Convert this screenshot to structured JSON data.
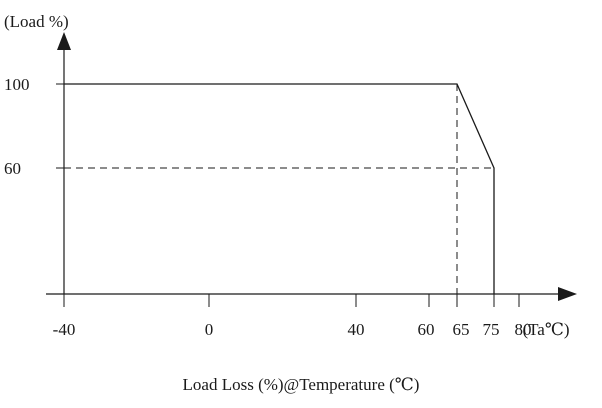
{
  "chart_data": {
    "type": "line",
    "y_axis_label": "(Load %)",
    "x_axis_unit_label": "(Ta℃)",
    "caption": "Load Loss (%)@Temperature (℃)",
    "x_ticks": [
      "-40",
      "0",
      "40",
      "60",
      "65",
      "75",
      "80"
    ],
    "y_ticks": [
      "100",
      "60"
    ],
    "xlim": [
      -40,
      84
    ],
    "ylim": [
      -5,
      122
    ],
    "series": [
      {
        "points": [
          {
            "x": -40,
            "y": 100
          },
          {
            "x": 65,
            "y": 100
          },
          {
            "x": 75,
            "y": 60
          },
          {
            "x": 75,
            "y": 0
          }
        ]
      }
    ],
    "reference_lines": [
      {
        "from": {
          "x": -40,
          "y": 60
        },
        "to": {
          "x": 75,
          "y": 60
        }
      },
      {
        "from": {
          "x": 65,
          "y": 100
        },
        "to": {
          "x": 65,
          "y": 0
        }
      }
    ]
  }
}
